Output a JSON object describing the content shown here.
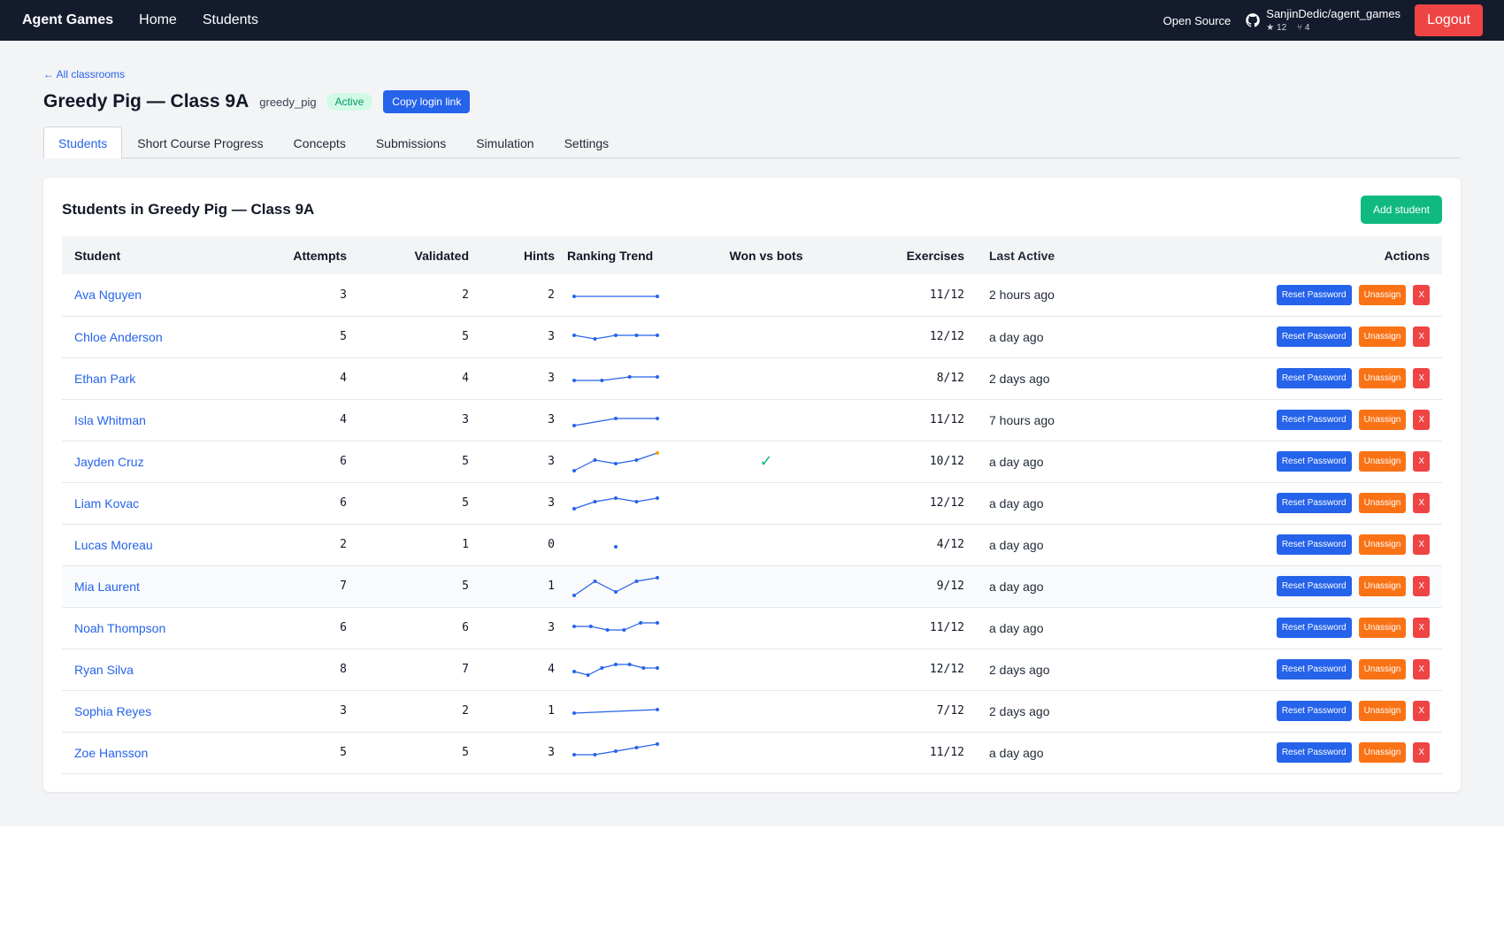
{
  "navbar": {
    "brand": "Agent Games",
    "links": [
      "Home",
      "Students"
    ],
    "open_source": "Open Source",
    "repo_name": "SanjinDedic/agent_games",
    "stars": "★ 12",
    "forks": "⑂ 4",
    "logout": "Logout"
  },
  "header": {
    "back_link": "← All classrooms",
    "title": "Greedy Pig — Class 9A",
    "slug": "greedy_pig",
    "status": "Active",
    "copy_login": "Copy login link"
  },
  "tabs": [
    "Students",
    "Short Course Progress",
    "Concepts",
    "Submissions",
    "Simulation",
    "Settings"
  ],
  "card": {
    "title": "Students in Greedy Pig — Class 9A",
    "add_student": "Add student"
  },
  "table": {
    "columns": [
      "Student",
      "Attempts",
      "Validated",
      "Hints",
      "Ranking Trend",
      "Won vs bots",
      "Exercises",
      "Last Active",
      "Actions"
    ],
    "action_labels": {
      "reset": "Reset Password",
      "unassign": "Unassign",
      "remove": "X"
    },
    "won_mark": "✓",
    "rows": [
      {
        "name": "Ava Nguyen",
        "attempts": "3",
        "validated": "2",
        "hints": "2",
        "trend": [
          4,
          4
        ],
        "won": false,
        "exercises": "11/12",
        "last": "2 hours ago"
      },
      {
        "name": "Chloe Anderson",
        "attempts": "5",
        "validated": "5",
        "hints": "3",
        "trend": [
          3,
          4,
          3,
          3,
          3
        ],
        "won": false,
        "exercises": "12/12",
        "last": "a day ago"
      },
      {
        "name": "Ethan Park",
        "attempts": "4",
        "validated": "4",
        "hints": "3",
        "trend": [
          4,
          4,
          3,
          3
        ],
        "won": false,
        "exercises": "8/12",
        "last": "2 days ago"
      },
      {
        "name": "Isla Whitman",
        "attempts": "4",
        "validated": "3",
        "hints": "3",
        "trend": [
          5,
          3,
          3
        ],
        "won": false,
        "exercises": "11/12",
        "last": "7 hours ago"
      },
      {
        "name": "Jayden Cruz",
        "attempts": "6",
        "validated": "5",
        "hints": "3",
        "trend": [
          6,
          3,
          4,
          3,
          1
        ],
        "won": true,
        "exercises": "10/12",
        "last": "a day ago"
      },
      {
        "name": "Liam Kovac",
        "attempts": "6",
        "validated": "5",
        "hints": "3",
        "trend": [
          5,
          3,
          2,
          3,
          2
        ],
        "won": false,
        "exercises": "12/12",
        "last": "a day ago"
      },
      {
        "name": "Lucas Moreau",
        "attempts": "2",
        "validated": "1",
        "hints": "0",
        "trend": [
          4
        ],
        "won": false,
        "exercises": "4/12",
        "last": "a day ago"
      },
      {
        "name": "Mia Laurent",
        "attempts": "7",
        "validated": "5",
        "hints": "1",
        "trend": [
          6,
          2,
          5,
          2,
          1
        ],
        "won": false,
        "exercises": "9/12",
        "last": "a day ago"
      },
      {
        "name": "Noah Thompson",
        "attempts": "6",
        "validated": "6",
        "hints": "3",
        "trend": [
          3,
          3,
          4,
          4,
          2,
          2
        ],
        "won": false,
        "exercises": "11/12",
        "last": "a day ago"
      },
      {
        "name": "Ryan Silva",
        "attempts": "8",
        "validated": "7",
        "hints": "4",
        "trend": [
          4,
          5,
          3,
          2,
          2,
          3,
          3
        ],
        "won": false,
        "exercises": "12/12",
        "last": "2 days ago"
      },
      {
        "name": "Sophia Reyes",
        "attempts": "3",
        "validated": "2",
        "hints": "1",
        "trend": [
          4,
          3
        ],
        "won": false,
        "exercises": "7/12",
        "last": "2 days ago"
      },
      {
        "name": "Zoe Hansson",
        "attempts": "5",
        "validated": "5",
        "hints": "3",
        "trend": [
          4,
          4,
          3,
          2,
          1
        ],
        "won": false,
        "exercises": "11/12",
        "last": "a day ago"
      }
    ]
  },
  "colors": {
    "navbar_bg": "#141b2d",
    "accent_blue": "#2563eb",
    "success_green": "#10b981",
    "warning_orange": "#f97316",
    "danger_red": "#ef4444",
    "latest_point": "#f59e0b"
  },
  "icons": {
    "github": "github-icon"
  }
}
